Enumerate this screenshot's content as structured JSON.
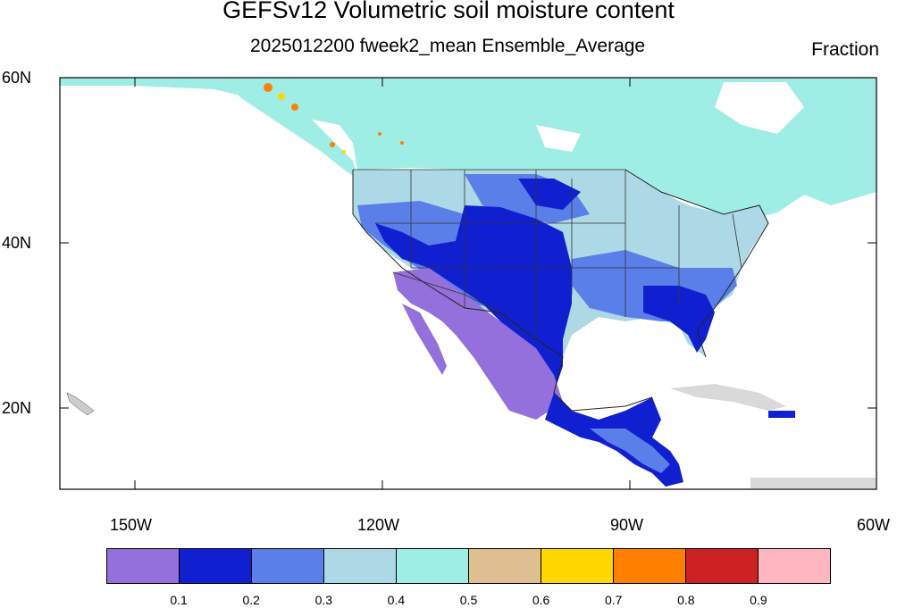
{
  "title": "GEFSv12 Volumetric soil moisture content",
  "subtitle": "2025012200 fweek2_mean Ensemble_Average",
  "units": "Fraction",
  "lat_labels": [
    "60N",
    "40N",
    "20N"
  ],
  "lon_labels": [
    "150W",
    "120W",
    "90W",
    "60W"
  ],
  "colorbar": {
    "colors": [
      "#9370DB",
      "#1020D0",
      "#5A7FE8",
      "#ADD8E6",
      "#9EEEE6",
      "#DEBF90",
      "#FFD700",
      "#FF7F00",
      "#CC2222",
      "#FFB6C1"
    ],
    "labels": [
      "0.1",
      "0.2",
      "0.3",
      "0.4",
      "0.5",
      "0.6",
      "0.7",
      "0.8",
      "0.9"
    ]
  }
}
